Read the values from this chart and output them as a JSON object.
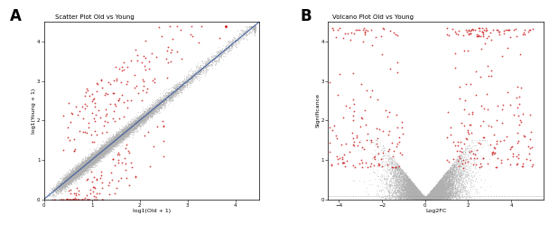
{
  "scatter_title": "Scatter Plot Old vs Young",
  "scatter_xlabel": "log1(Old + 1)",
  "scatter_ylabel": "log1(Young + 1)",
  "scatter_xlim": [
    0,
    4.5
  ],
  "scatter_ylim": [
    0,
    4.5
  ],
  "scatter_xticks": [
    0,
    1,
    2,
    3,
    4
  ],
  "scatter_yticks": [
    0,
    1,
    2,
    3,
    4
  ],
  "volcano_title": "Volcano Plot Old vs Young",
  "volcano_xlabel": "Log2FC",
  "volcano_ylabel": "Significance",
  "volcano_xlim": [
    -4.5,
    5.5
  ],
  "volcano_ylim": [
    0,
    4.5
  ],
  "volcano_xticks": [
    -4,
    -2,
    0,
    2,
    4
  ],
  "volcano_yticks": [
    0,
    1,
    2,
    3,
    4
  ],
  "panel_A_label": "A",
  "panel_B_label": "B",
  "gray_color": "#b0b0b0",
  "red_color": "#cc2222",
  "blue_line_color": "#3a5a9a",
  "n_gray_scatter": 10000,
  "n_red_scatter": 300,
  "n_gray_volcano": 12000,
  "n_red_volcano": 380,
  "bg_color": "#ffffff",
  "axis_linewidth": 0.5,
  "dot_size_scatter": 0.8,
  "dot_size_volcano": 0.8,
  "font_size_title": 5,
  "font_size_axis": 4.5,
  "font_size_tick": 4,
  "font_size_legend": 4,
  "font_size_panel": 12
}
